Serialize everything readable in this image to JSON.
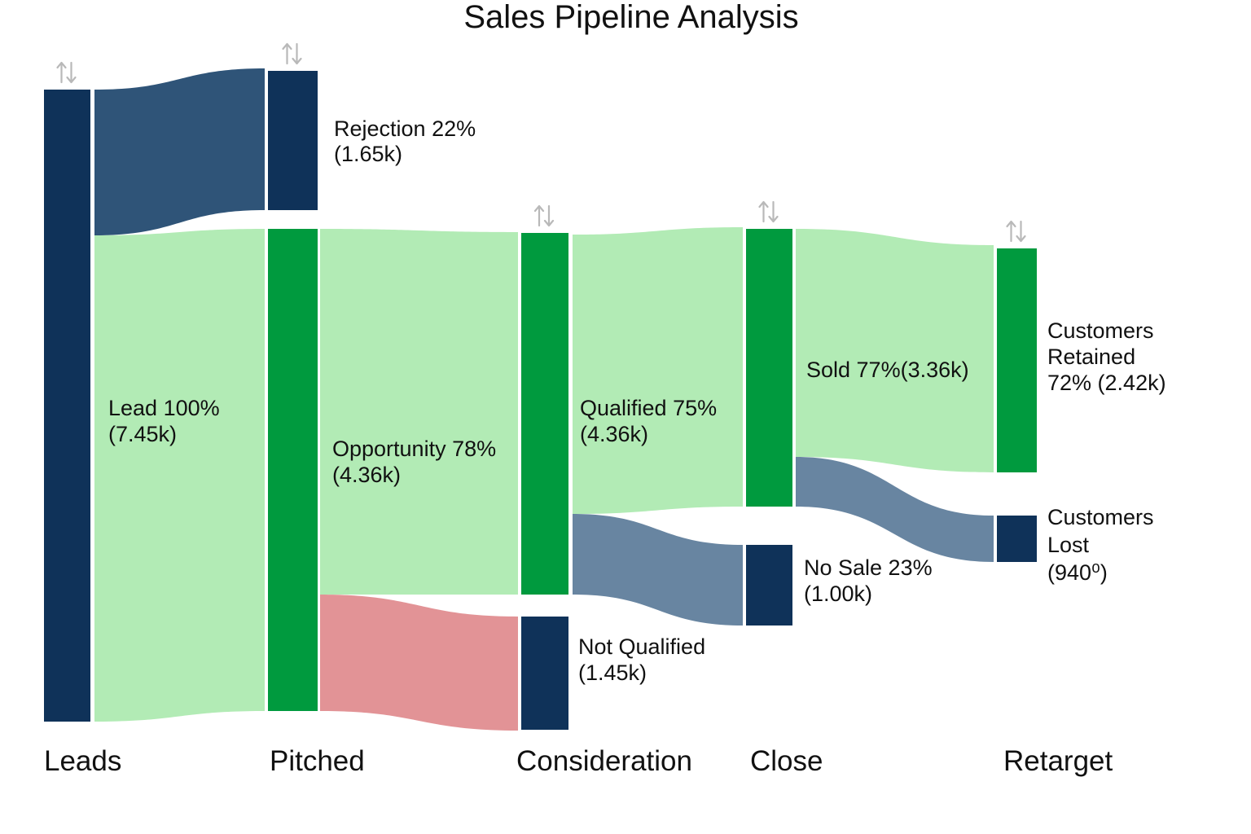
{
  "title": "Sales Pipeline Analysis",
  "colors": {
    "navy": "#0f3259",
    "green": "#009a3e",
    "light_green": "#b2ebb5",
    "steel_blue": "#2f5478",
    "slate_blue": "#6885a1",
    "salmon": "#e29396",
    "sort_icon": "#b9b9b9"
  },
  "icons": {
    "sort": "sort-arrows-icon"
  },
  "chart_data": {
    "type": "sankey",
    "title": "Sales Pipeline Analysis",
    "stages": [
      "Leads",
      "Pitched",
      "Consideration",
      "Close",
      "Retarget"
    ],
    "nodes": [
      {
        "id": "leads",
        "stage": "Leads",
        "color": "navy",
        "lines": [],
        "sortable": true
      },
      {
        "id": "rejection",
        "stage": "Pitched",
        "color": "navy",
        "lines": [
          "Rejection 22%",
          "(1.65k)"
        ],
        "sortable": true
      },
      {
        "id": "pitched",
        "stage": "Pitched",
        "color": "green",
        "lines": [],
        "sortable": false
      },
      {
        "id": "consideration",
        "stage": "Consideration",
        "color": "green",
        "lines": [],
        "sortable": true
      },
      {
        "id": "not_qualified",
        "stage": "Consideration",
        "color": "navy",
        "lines": [
          "Not Qualified",
          "(1.45k)"
        ],
        "sortable": false
      },
      {
        "id": "close",
        "stage": "Close",
        "color": "green",
        "lines": [],
        "sortable": true
      },
      {
        "id": "no_sale",
        "stage": "Close",
        "color": "navy",
        "lines": [
          "No Sale 23%",
          "(1.00k)"
        ],
        "sortable": false
      },
      {
        "id": "retained",
        "stage": "Retarget",
        "color": "green",
        "lines": [
          "Customers",
          "Retained",
          "72% (2.42k)"
        ],
        "sortable": true
      },
      {
        "id": "lost",
        "stage": "Retarget",
        "color": "navy",
        "lines": [
          "Customers",
          "Lost",
          "(940⁰)"
        ],
        "sortable": false
      }
    ],
    "links": [
      {
        "source": "leads",
        "target": "rejection",
        "color": "steel_blue",
        "lines": []
      },
      {
        "source": "leads",
        "target": "pitched",
        "color": "light_green",
        "lines": [
          "Lead 100%",
          "(7.45k)"
        ]
      },
      {
        "source": "pitched",
        "target": "consideration",
        "color": "light_green",
        "lines": [
          "Opportunity 78%",
          "(4.36k)"
        ]
      },
      {
        "source": "pitched",
        "target": "not_qualified",
        "color": "salmon",
        "lines": []
      },
      {
        "source": "consideration",
        "target": "close",
        "color": "light_green",
        "lines": [
          "Qualified 75%",
          "(4.36k)"
        ]
      },
      {
        "source": "consideration",
        "target": "no_sale",
        "color": "slate_blue",
        "lines": []
      },
      {
        "source": "close",
        "target": "retained",
        "color": "light_green",
        "lines": [
          "Sold 77%(3.36k)"
        ]
      },
      {
        "source": "close",
        "target": "lost",
        "color": "slate_blue",
        "lines": []
      }
    ]
  }
}
